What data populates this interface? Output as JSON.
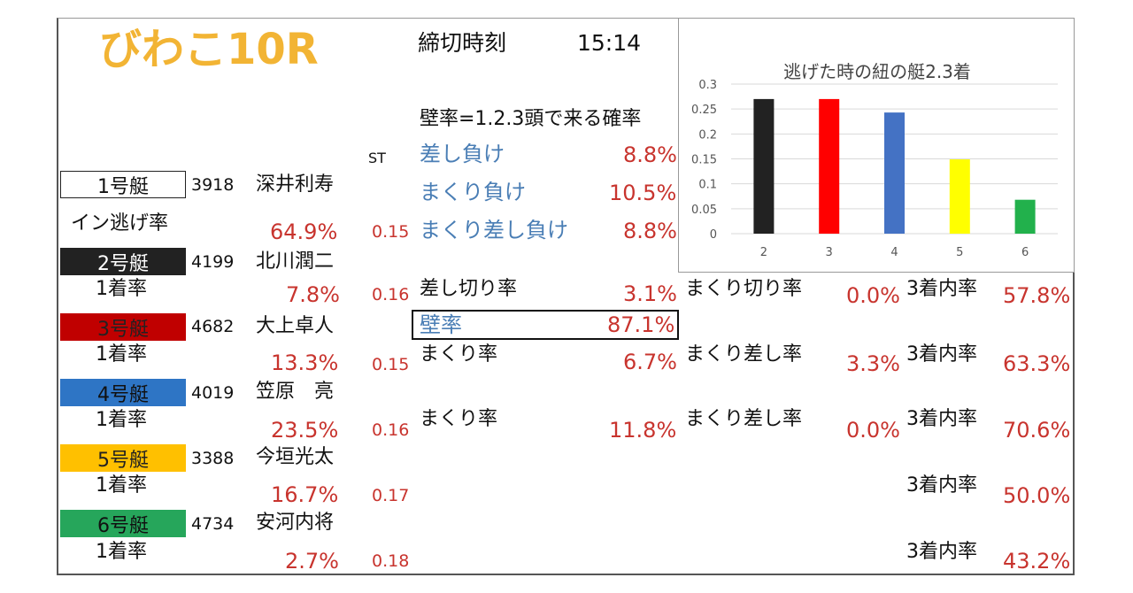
{
  "header": {
    "venue_race": "びわこ10R",
    "deadline_label": "締切時刻",
    "deadline_time": "15:14"
  },
  "col_st": "ST",
  "wall": {
    "heading": "壁率=1.2.3頭で来る確率",
    "items": [
      {
        "label": "差し負け",
        "value": "8.8%"
      },
      {
        "label": "まくり負け",
        "value": "10.5%"
      },
      {
        "label": "まくり差し負け",
        "value": "8.8%"
      }
    ]
  },
  "boats": [
    {
      "label": "1号艇",
      "id": "3918",
      "name": "深井利寿",
      "stat_label": "イン逃げ率",
      "stat": "64.9%",
      "st": "0.15"
    },
    {
      "label": "2号艇",
      "id": "4199",
      "name": "北川潤二",
      "stat_label": "1着率",
      "stat": "7.8%",
      "st": "0.16"
    },
    {
      "label": "3号艇",
      "id": "4682",
      "name": "大上卓人",
      "stat_label": "1着率",
      "stat": "13.3%",
      "st": "0.15"
    },
    {
      "label": "4号艇",
      "id": "4019",
      "name": "笠原　亮",
      "stat_label": "1着率",
      "stat": "23.5%",
      "st": "0.16"
    },
    {
      "label": "5号艇",
      "id": "3388",
      "name": "今垣光太",
      "stat_label": "1着率",
      "stat": "16.7%",
      "st": "0.17"
    },
    {
      "label": "6号艇",
      "id": "4734",
      "name": "安河内将",
      "stat_label": "1着率",
      "stat": "2.7%",
      "st": "0.18"
    }
  ],
  "details": {
    "b2": {
      "a_label": "差し切り率",
      "a_value": "3.1%",
      "b_label": "まくり切り率",
      "b_value": "0.0%",
      "c_label": "3着内率",
      "c_value": "57.8%"
    },
    "kabe": {
      "label": "壁率",
      "value": "87.1%"
    },
    "b3": {
      "a_label": "まくり率",
      "a_value": "6.7%",
      "b_label": "まくり差し率",
      "b_value": "3.3%",
      "c_label": "3着内率",
      "c_value": "63.3%"
    },
    "b4": {
      "a_label": "まくり率",
      "a_value": "11.8%",
      "b_label": "まくり差し率",
      "b_value": "0.0%",
      "c_label": "3着内率",
      "c_value": "70.6%"
    },
    "b5": {
      "c_label": "3着内率",
      "c_value": "50.0%"
    },
    "b6": {
      "c_label": "3着内率",
      "c_value": "43.2%"
    }
  },
  "chart_data": {
    "type": "bar",
    "title": "逃げた時の紐の艇2.3着",
    "categories": [
      "2",
      "3",
      "4",
      "5",
      "6"
    ],
    "values": [
      0.27,
      0.27,
      0.243,
      0.149,
      0.068
    ],
    "colors": [
      "#222222",
      "#FF0000",
      "#4472C4",
      "#FFFF00",
      "#22B14C"
    ],
    "yticks": [
      "0",
      "0.05",
      "0.1",
      "0.15",
      "0.2",
      "0.25",
      "0.3"
    ],
    "ylim": [
      0,
      0.3
    ],
    "grid": true,
    "legend": false
  }
}
